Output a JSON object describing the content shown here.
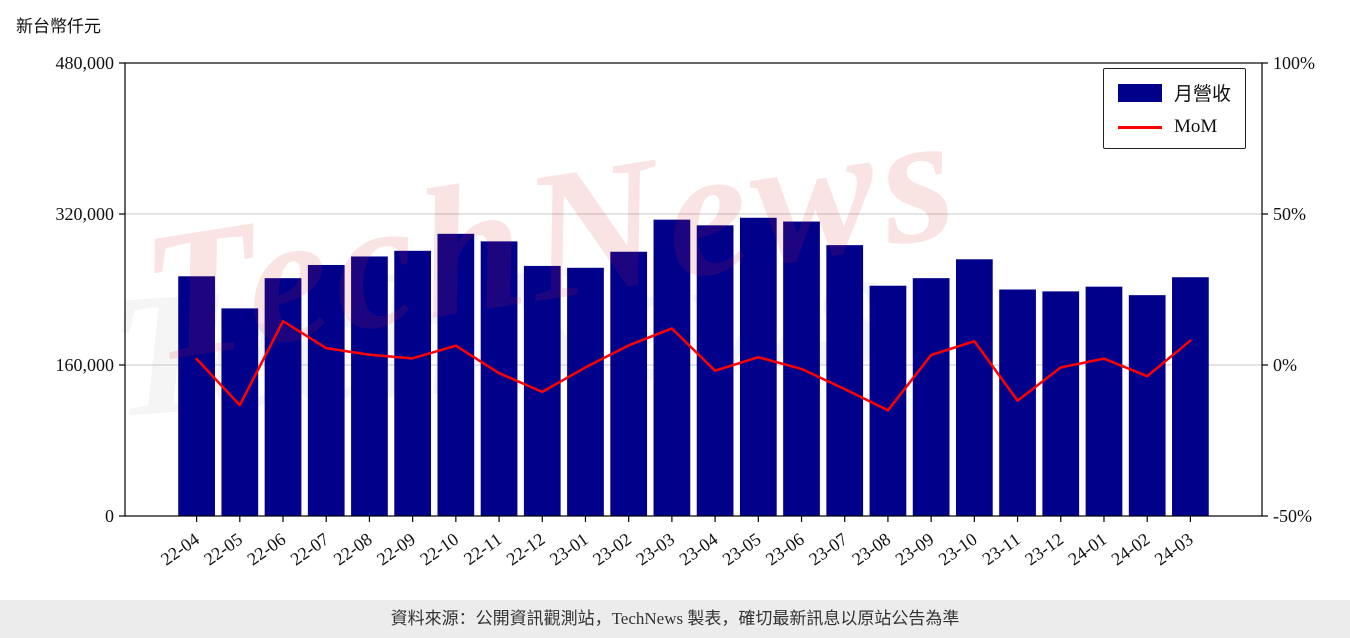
{
  "legend": {
    "revenue_label": "月營收",
    "mom_label": "MoM"
  },
  "watermark": {
    "text": "TechNews"
  },
  "footer": {
    "text": "資料來源：公開資訊觀測站，TechNews 製表，確切最新訊息以原站公告為準"
  },
  "chart_data": {
    "type": "bar",
    "title": "",
    "categories": [
      "22-04",
      "22-05",
      "22-06",
      "22-07",
      "22-08",
      "22-09",
      "22-10",
      "22-11",
      "22-12",
      "23-01",
      "23-02",
      "23-03",
      "23-04",
      "23-05",
      "23-06",
      "23-07",
      "23-08",
      "23-09",
      "23-10",
      "23-11",
      "23-12",
      "24-01",
      "24-02",
      "24-03"
    ],
    "series": [
      {
        "name": "月營收",
        "type": "bar",
        "axis": "left",
        "color": "#00008B",
        "values": [
          254000,
          220000,
          252000,
          266000,
          275000,
          281000,
          299000,
          291000,
          265000,
          263000,
          280000,
          314000,
          308000,
          316000,
          312000,
          287000,
          244000,
          252000,
          272000,
          240000,
          238000,
          243000,
          234000,
          253000
        ]
      },
      {
        "name": "MoM",
        "type": "line",
        "axis": "right",
        "color": "#FF0000",
        "values": [
          2.0,
          -13.3,
          14.5,
          5.6,
          3.4,
          2.2,
          6.4,
          -2.7,
          -8.9,
          -0.8,
          6.5,
          12.1,
          -1.9,
          2.6,
          -1.3,
          -8.0,
          -15.0,
          3.3,
          7.9,
          -11.8,
          -0.8,
          2.1,
          -3.7,
          8.1
        ]
      }
    ],
    "left_axis": {
      "label": "新台幣仟元",
      "range": [
        0,
        480000
      ],
      "ticks": [
        {
          "value": 0,
          "label": "0"
        },
        {
          "value": 160000,
          "label": "160,000"
        },
        {
          "value": 320000,
          "label": "320,000"
        },
        {
          "value": 480000,
          "label": "480,000"
        }
      ]
    },
    "right_axis": {
      "range": [
        -50,
        100
      ],
      "ticks": [
        {
          "value": -50,
          "label": "-50%"
        },
        {
          "value": 0,
          "label": "0%"
        },
        {
          "value": 50,
          "label": "50%"
        },
        {
          "value": 100,
          "label": "100%"
        }
      ]
    },
    "grid": true,
    "legend_position": "top-right",
    "colors": {
      "bar": "#00008B",
      "line": "#FF0000",
      "grid": "#c8c8c8",
      "axis": "#000000",
      "watermark": "#d72828"
    }
  }
}
